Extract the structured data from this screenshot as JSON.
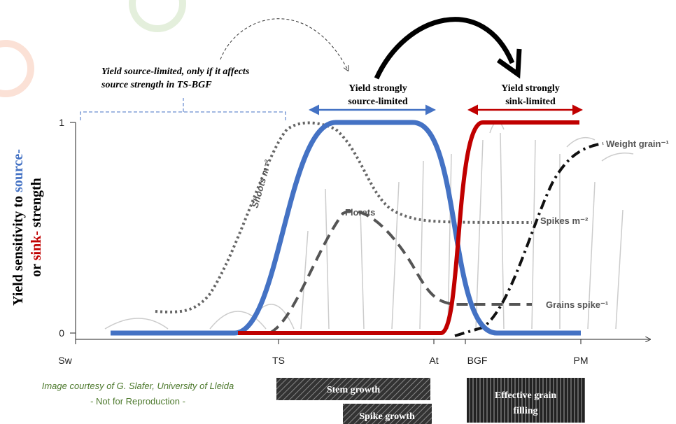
{
  "y_axis": {
    "title_part1": "Yield sensitivity to ",
    "title_source": "source-",
    "title_part2": "or ",
    "title_sink": "sink-",
    "title_part3": " strength",
    "ticks": [
      "1",
      "0"
    ]
  },
  "x_axis": {
    "labels": [
      "Sw",
      "TS",
      "At",
      "BGF",
      "PM"
    ]
  },
  "annotations": {
    "source_limited_if": [
      "Yield source-limited, only if it affects",
      "source strength in TS-BGF"
    ],
    "strongly_source": [
      "Yield strongly",
      "source-limited"
    ],
    "strongly_sink": [
      "Yield strongly",
      "sink-limited"
    ]
  },
  "curve_labels": {
    "shoots": "Shoots m⁻²",
    "florets": "Florets",
    "spikes": "Spikes m⁻²",
    "grains": "Grains spike⁻¹",
    "weight": "Weight grain⁻¹"
  },
  "phases": {
    "stem": "Stem growth",
    "spike": "Spike growth",
    "grain_filling": [
      "Effective grain",
      "filling"
    ]
  },
  "credits": [
    "Image courtesy of G. Slafer, University of Lleida",
    "- Not for Reproduction -"
  ]
}
